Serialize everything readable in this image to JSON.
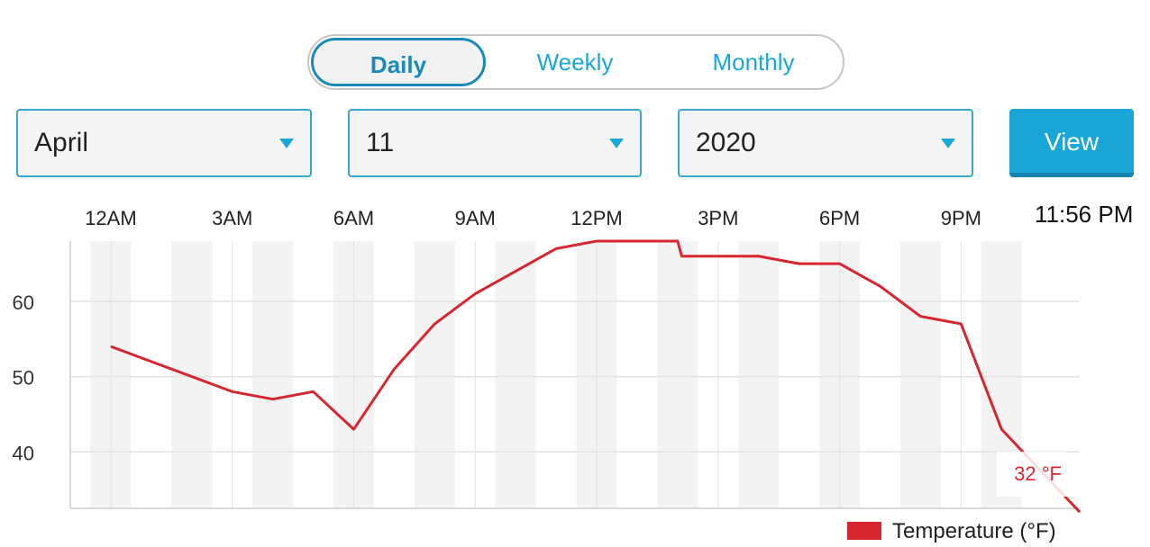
{
  "toggle": {
    "daily": "Daily",
    "weekly": "Weekly",
    "monthly": "Monthly"
  },
  "selects": {
    "month": "April",
    "day": "11",
    "year": "2020"
  },
  "view_label": "View",
  "time_display": "11:56 PM",
  "colors": {
    "accent": "#1ba6d8",
    "series": "#d62731",
    "band": "#f3f3f3",
    "grid": "#e2e2e2"
  },
  "chart_data": {
    "type": "line",
    "x_tick_labels": [
      "12AM",
      "3AM",
      "6AM",
      "9AM",
      "12PM",
      "3PM",
      "6PM",
      "9PM"
    ],
    "x_tick_hours": [
      0,
      3,
      6,
      9,
      12,
      15,
      18,
      21
    ],
    "y_ticks": [
      40,
      50,
      60
    ],
    "xlim_hours": [
      -1,
      23.93
    ],
    "ylim": [
      32.5,
      68
    ],
    "series": [
      {
        "name": "Temperature (°F)",
        "hours": [
          0,
          1,
          2,
          3,
          4,
          5,
          6,
          7,
          8,
          9,
          10,
          11,
          12,
          13,
          14,
          14.1,
          15,
          16,
          17,
          18,
          19,
          20,
          21,
          22,
          23.93
        ],
        "values": [
          54,
          52,
          50,
          48,
          47,
          48,
          43,
          51,
          57,
          61,
          64,
          67,
          68,
          68,
          68,
          66,
          66,
          66,
          65,
          65,
          62,
          58,
          57,
          43,
          32
        ]
      }
    ],
    "annotation": "32 °F",
    "legend": "Temperature (°F)",
    "legend_position": "bottom-right",
    "grid": true
  }
}
